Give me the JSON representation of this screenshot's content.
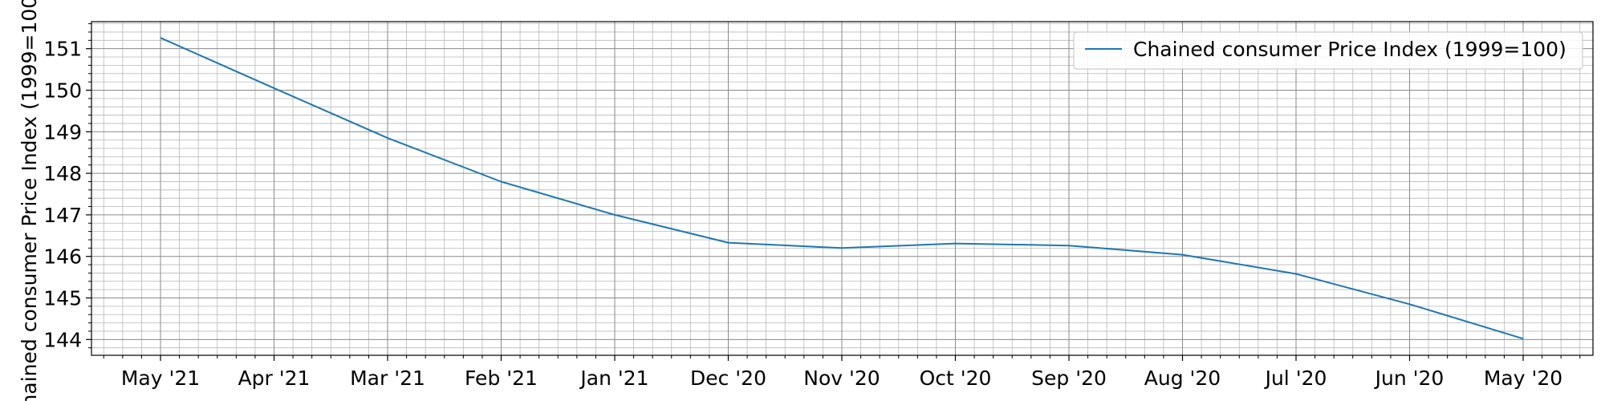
{
  "chart_data": {
    "type": "line",
    "title": "",
    "xlabel": "",
    "ylabel": "Chained consumer Price Index (1999=100)",
    "x_axis_order": "descending",
    "categories": [
      "May '21",
      "Apr '21",
      "Mar '21",
      "Feb '21",
      "Jan '21",
      "Dec '20",
      "Nov '20",
      "Oct '20",
      "Sep '20",
      "Aug '20",
      "Jul '20",
      "Jun '20",
      "May '20"
    ],
    "series": [
      {
        "name": "Chained consumer Price Index (1999=100)",
        "color": "#1f77b4",
        "values": [
          151.26,
          150.05,
          148.85,
          147.8,
          147.0,
          146.33,
          146.2,
          146.31,
          146.26,
          146.04,
          145.58,
          144.85,
          144.02
        ]
      }
    ],
    "yticks": [
      144,
      145,
      146,
      147,
      148,
      149,
      150,
      151
    ],
    "ylim": [
      143.62,
      151.65
    ],
    "grid": true,
    "minor_grid": true,
    "legend": "top-right"
  }
}
